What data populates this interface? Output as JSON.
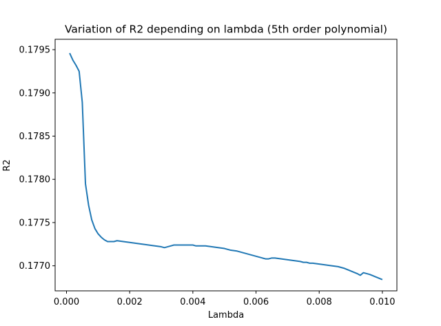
{
  "chart_data": {
    "type": "line",
    "title": "Variation of R2 depending on lambda (5th order polynomial)",
    "xlabel": "Lambda",
    "ylabel": "R2",
    "xlim": [
      -0.00036,
      0.01046
    ],
    "ylim": [
      0.17671,
      0.17962
    ],
    "x_ticks": [
      0.0,
      0.002,
      0.004,
      0.006,
      0.008,
      0.01
    ],
    "x_tick_labels": [
      "0.000",
      "0.002",
      "0.004",
      "0.006",
      "0.008",
      "0.010"
    ],
    "y_ticks": [
      0.177,
      0.1775,
      0.178,
      0.1785,
      0.179,
      0.1795
    ],
    "y_tick_labels": [
      "0.1770",
      "0.1775",
      "0.1780",
      "0.1785",
      "0.1790",
      "0.1795"
    ],
    "grid": false,
    "series": [
      {
        "color": "#1f77b4",
        "x": [
          0.0001,
          0.0002,
          0.0003,
          0.0004,
          0.0005,
          0.0006,
          0.0007,
          0.0008,
          0.0009,
          0.001,
          0.0011,
          0.0012,
          0.0013,
          0.0014,
          0.0015,
          0.0016,
          0.0018,
          0.002,
          0.0022,
          0.0024,
          0.0026,
          0.0028,
          0.003,
          0.0031,
          0.0032,
          0.0033,
          0.0034,
          0.0036,
          0.0038,
          0.004,
          0.0041,
          0.0042,
          0.0044,
          0.0046,
          0.0048,
          0.005,
          0.0052,
          0.0054,
          0.0056,
          0.0058,
          0.006,
          0.0061,
          0.0062,
          0.0063,
          0.0064,
          0.0065,
          0.0066,
          0.0068,
          0.007,
          0.0072,
          0.0074,
          0.0075,
          0.0076,
          0.0077,
          0.0078,
          0.008,
          0.0082,
          0.0084,
          0.0086,
          0.0088,
          0.009,
          0.0092,
          0.0093,
          0.0094,
          0.0095,
          0.0096,
          0.0098,
          0.01
        ],
        "y": [
          0.17946,
          0.17938,
          0.17932,
          0.17925,
          0.17889,
          0.17795,
          0.1777,
          0.17753,
          0.17743,
          0.17737,
          0.17733,
          0.1773,
          0.17728,
          0.17728,
          0.17728,
          0.17729,
          0.17728,
          0.17727,
          0.17726,
          0.17725,
          0.17724,
          0.17723,
          0.17722,
          0.17721,
          0.17722,
          0.17723,
          0.17724,
          0.17724,
          0.17724,
          0.17724,
          0.17723,
          0.17723,
          0.17723,
          0.17722,
          0.17721,
          0.1772,
          0.17718,
          0.17717,
          0.17715,
          0.17713,
          0.17711,
          0.1771,
          0.17709,
          0.17708,
          0.17708,
          0.17709,
          0.17709,
          0.17708,
          0.17707,
          0.17706,
          0.17705,
          0.17704,
          0.17704,
          0.17703,
          0.17703,
          0.17702,
          0.17701,
          0.177,
          0.17699,
          0.17697,
          0.17694,
          0.17691,
          0.17689,
          0.17692,
          0.17691,
          0.1769,
          0.17687,
          0.17684
        ]
      }
    ]
  }
}
